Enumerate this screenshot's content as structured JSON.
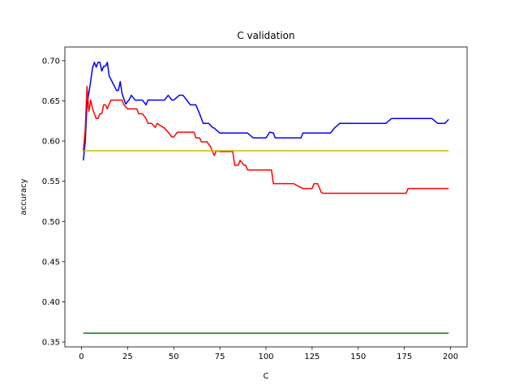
{
  "chart_data": {
    "type": "line",
    "title": "C validation",
    "xlabel": "C",
    "ylabel": "accuracy",
    "xlim": [
      -9,
      209
    ],
    "ylim": [
      0.344,
      0.717
    ],
    "xticks": [
      0,
      25,
      50,
      75,
      100,
      125,
      150,
      175,
      200
    ],
    "yticks": [
      0.35,
      0.4,
      0.45,
      0.5,
      0.55,
      0.6,
      0.65,
      0.7
    ],
    "grid": false,
    "colors": {
      "blue": "#0000ff",
      "red": "#ff0000",
      "yellow": "#bfbf00",
      "green": "#008000"
    },
    "series": [
      {
        "color": "blue",
        "x": [
          1,
          2,
          3,
          4,
          5,
          6,
          7,
          8,
          9,
          10,
          11,
          12,
          13,
          14,
          15,
          17,
          19,
          20,
          21,
          22,
          24,
          26,
          27,
          29,
          31,
          33,
          35,
          36,
          40,
          45,
          47,
          49,
          50,
          53,
          55,
          57,
          59,
          62,
          64,
          66,
          68,
          69,
          71,
          72,
          75,
          80,
          85,
          90,
          93,
          95,
          100,
          102,
          104,
          105,
          110,
          115,
          119,
          120,
          125,
          130,
          135,
          137,
          140,
          145,
          150,
          155,
          160,
          165,
          168,
          170,
          175,
          180,
          185,
          190,
          193,
          195,
          197,
          199
        ],
        "y": [
          0.576,
          0.598,
          0.645,
          0.66,
          0.675,
          0.691,
          0.698,
          0.692,
          0.698,
          0.698,
          0.687,
          0.693,
          0.693,
          0.698,
          0.681,
          0.672,
          0.663,
          0.663,
          0.674,
          0.659,
          0.646,
          0.652,
          0.657,
          0.651,
          0.651,
          0.651,
          0.645,
          0.651,
          0.651,
          0.651,
          0.657,
          0.651,
          0.651,
          0.657,
          0.657,
          0.651,
          0.645,
          0.645,
          0.634,
          0.622,
          0.622,
          0.622,
          0.617,
          0.616,
          0.61,
          0.61,
          0.61,
          0.61,
          0.604,
          0.604,
          0.604,
          0.611,
          0.61,
          0.604,
          0.604,
          0.604,
          0.604,
          0.61,
          0.61,
          0.61,
          0.61,
          0.616,
          0.622,
          0.622,
          0.622,
          0.622,
          0.622,
          0.622,
          0.628,
          0.628,
          0.628,
          0.628,
          0.628,
          0.628,
          0.622,
          0.622,
          0.622,
          0.627
        ]
      },
      {
        "color": "red",
        "x": [
          1,
          2,
          3,
          4,
          5,
          6,
          7,
          8,
          9,
          10,
          11,
          12,
          13,
          14,
          15,
          16,
          17,
          20,
          22,
          23,
          25,
          28,
          30,
          31,
          33,
          35,
          36,
          38,
          40,
          41,
          45,
          47,
          49,
          50,
          52,
          55,
          58,
          61,
          62,
          64,
          65,
          67,
          68,
          70,
          71,
          72,
          73,
          75,
          79,
          80,
          82,
          83,
          85,
          86,
          88,
          89,
          90,
          92,
          95,
          100,
          103,
          104,
          105,
          110,
          115,
          120,
          125,
          126,
          128,
          130,
          131,
          135,
          140,
          145,
          150,
          155,
          160,
          165,
          170,
          175,
          176,
          177,
          180,
          185,
          190,
          195,
          199
        ],
        "y": [
          0.587,
          0.613,
          0.668,
          0.637,
          0.651,
          0.64,
          0.634,
          0.628,
          0.628,
          0.634,
          0.634,
          0.645,
          0.645,
          0.64,
          0.646,
          0.651,
          0.651,
          0.651,
          0.651,
          0.645,
          0.64,
          0.64,
          0.64,
          0.634,
          0.634,
          0.628,
          0.622,
          0.622,
          0.617,
          0.622,
          0.616,
          0.611,
          0.605,
          0.605,
          0.611,
          0.611,
          0.611,
          0.611,
          0.604,
          0.604,
          0.599,
          0.599,
          0.599,
          0.593,
          0.587,
          0.582,
          0.588,
          0.587,
          0.587,
          0.587,
          0.587,
          0.57,
          0.57,
          0.576,
          0.57,
          0.57,
          0.564,
          0.564,
          0.564,
          0.564,
          0.564,
          0.547,
          0.547,
          0.547,
          0.547,
          0.541,
          0.541,
          0.547,
          0.547,
          0.536,
          0.535,
          0.535,
          0.535,
          0.535,
          0.535,
          0.535,
          0.535,
          0.535,
          0.535,
          0.535,
          0.535,
          0.541,
          0.541,
          0.541,
          0.541,
          0.541,
          0.541
        ]
      },
      {
        "color": "yellow",
        "x": [
          1,
          199
        ],
        "y": [
          0.588,
          0.588
        ]
      },
      {
        "color": "green",
        "x": [
          1,
          199
        ],
        "y": [
          0.361,
          0.361
        ]
      }
    ]
  }
}
